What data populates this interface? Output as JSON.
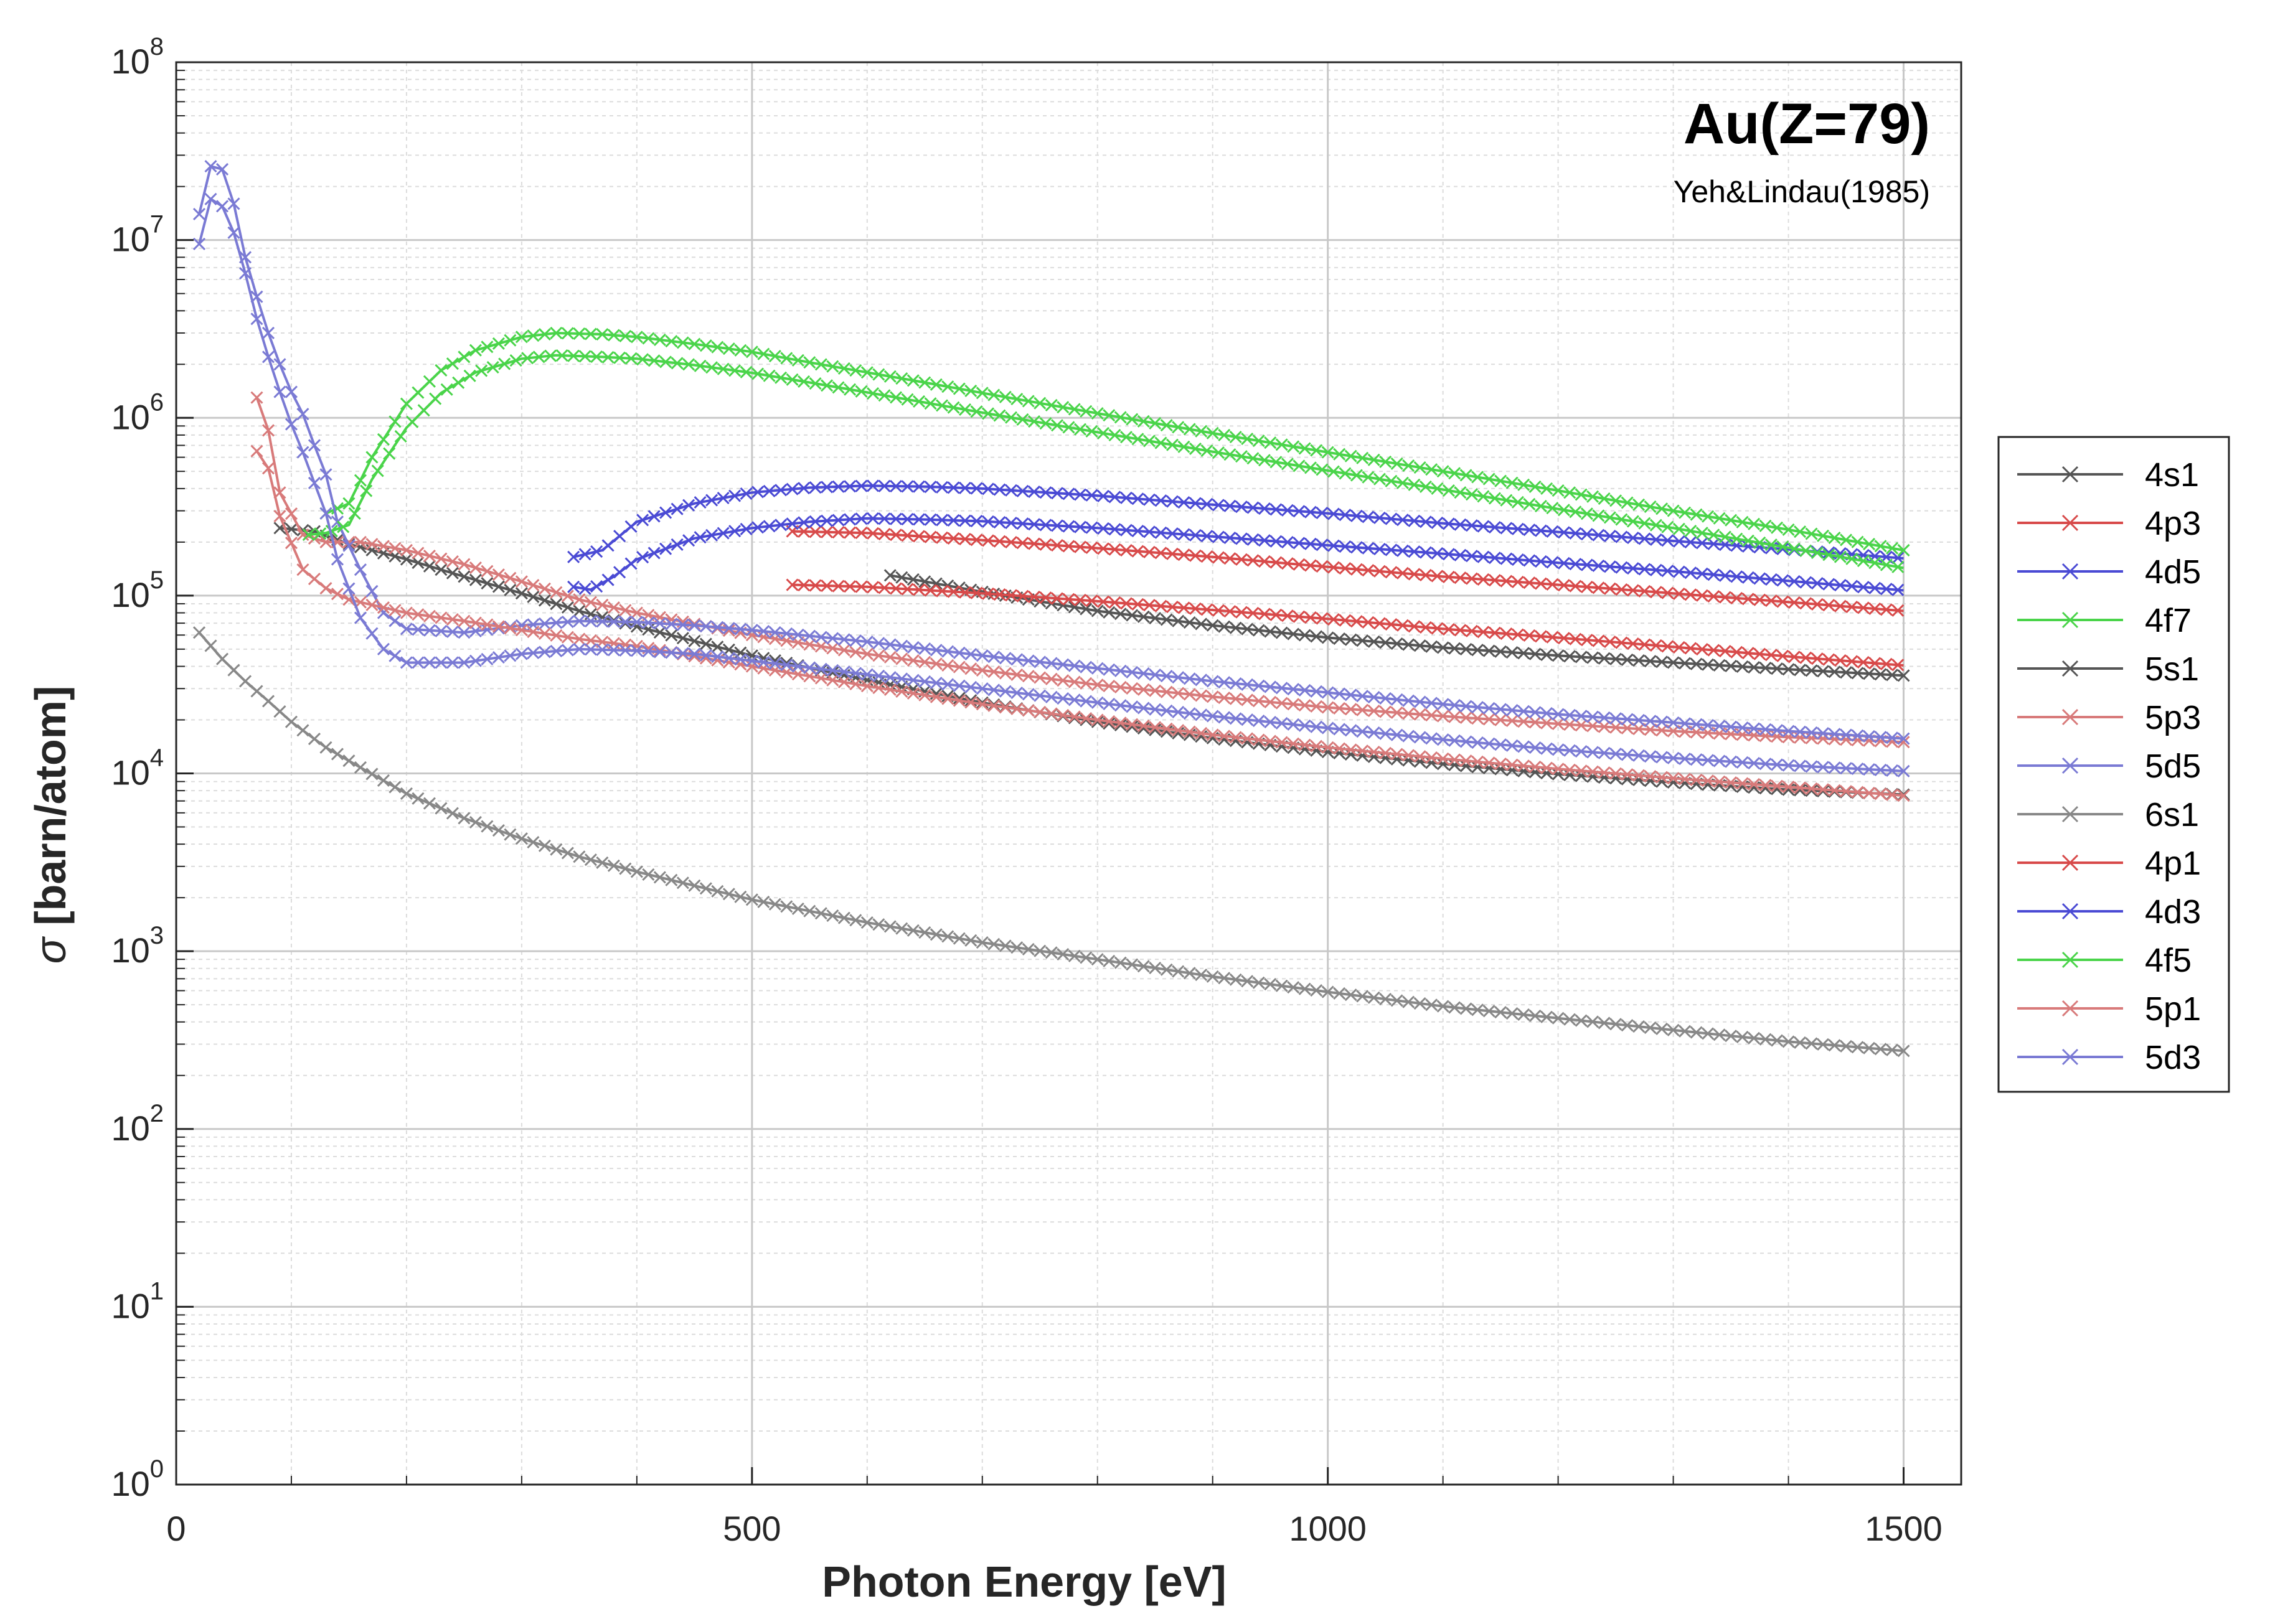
{
  "chart_data": {
    "type": "line",
    "title": "Au(Z=79)",
    "subtitle": "Yeh&Lindau(1985)",
    "xlabel": "Photon Energy [eV]",
    "ylabel_symbol": "σ",
    "ylabel_text": " [barn/atom]",
    "xlim": [
      0,
      1550
    ],
    "ylim": [
      1,
      100000000
    ],
    "yscale": "log",
    "grid": true,
    "minor_grid": true,
    "legend_position": "right",
    "marker": "x",
    "xticks": [
      {
        "value": 0,
        "label": "0"
      },
      {
        "value": 500,
        "label": "500"
      },
      {
        "value": 1000,
        "label": "1000"
      },
      {
        "value": 1500,
        "label": "1500"
      }
    ],
    "yticks": [
      {
        "value": 1,
        "base": "10",
        "exp": "0"
      },
      {
        "value": 10,
        "base": "10",
        "exp": "1"
      },
      {
        "value": 100,
        "base": "10",
        "exp": "2"
      },
      {
        "value": 1000,
        "base": "10",
        "exp": "3"
      },
      {
        "value": 10000,
        "base": "10",
        "exp": "4"
      },
      {
        "value": 100000,
        "base": "10",
        "exp": "5"
      },
      {
        "value": 1000000,
        "base": "10",
        "exp": "6"
      },
      {
        "value": 10000000,
        "base": "10",
        "exp": "7"
      },
      {
        "value": 100000000,
        "base": "10",
        "exp": "8"
      }
    ],
    "series": [
      {
        "name": "4s1",
        "color": "#555555",
        "points": [
          [
            620,
            130000
          ],
          [
            700,
            105000
          ],
          [
            800,
            82000
          ],
          [
            900,
            68000
          ],
          [
            1000,
            58000
          ],
          [
            1100,
            51000
          ],
          [
            1200,
            46000
          ],
          [
            1300,
            42000
          ],
          [
            1400,
            38500
          ],
          [
            1500,
            35500
          ]
        ]
      },
      {
        "name": "4p3",
        "color": "#d84a4a",
        "points": [
          [
            535,
            230000
          ],
          [
            600,
            225000
          ],
          [
            700,
            205000
          ],
          [
            800,
            185000
          ],
          [
            900,
            165000
          ],
          [
            1000,
            145000
          ],
          [
            1100,
            128000
          ],
          [
            1200,
            115000
          ],
          [
            1300,
            103000
          ],
          [
            1400,
            92000
          ],
          [
            1500,
            82000
          ]
        ]
      },
      {
        "name": "4d5",
        "color": "#4a4ad4",
        "points": [
          [
            345,
            165000
          ],
          [
            370,
            180000
          ],
          [
            400,
            260000
          ],
          [
            450,
            330000
          ],
          [
            500,
            380000
          ],
          [
            550,
            405000
          ],
          [
            600,
            415000
          ],
          [
            650,
            410000
          ],
          [
            700,
            400000
          ],
          [
            800,
            365000
          ],
          [
            900,
            325000
          ],
          [
            1000,
            290000
          ],
          [
            1100,
            255000
          ],
          [
            1200,
            228000
          ],
          [
            1300,
            203000
          ],
          [
            1400,
            182000
          ],
          [
            1500,
            162000
          ]
        ]
      },
      {
        "name": "4f7",
        "color": "#4ad44a",
        "points": [
          [
            130,
            290000
          ],
          [
            150,
            330000
          ],
          [
            170,
            600000
          ],
          [
            200,
            1200000
          ],
          [
            230,
            1850000
          ],
          [
            260,
            2400000
          ],
          [
            300,
            2850000
          ],
          [
            330,
            3000000
          ],
          [
            370,
            2950000
          ],
          [
            400,
            2850000
          ],
          [
            450,
            2600000
          ],
          [
            500,
            2350000
          ],
          [
            550,
            2050000
          ],
          [
            600,
            1800000
          ],
          [
            650,
            1580000
          ],
          [
            700,
            1380000
          ],
          [
            800,
            1060000
          ],
          [
            900,
            820000
          ],
          [
            1000,
            640000
          ],
          [
            1100,
            500000
          ],
          [
            1200,
            390000
          ],
          [
            1300,
            300000
          ],
          [
            1400,
            235000
          ],
          [
            1500,
            180000
          ]
        ]
      },
      {
        "name": "5s1",
        "color": "#555555",
        "points": [
          [
            90,
            240000
          ],
          [
            120,
            230000
          ],
          [
            150,
            195000
          ],
          [
            200,
            160000
          ],
          [
            250,
            128000
          ],
          [
            300,
            103000
          ],
          [
            350,
            82000
          ],
          [
            400,
            67000
          ],
          [
            500,
            46000
          ],
          [
            600,
            33500
          ],
          [
            700,
            25000
          ],
          [
            800,
            19500
          ],
          [
            900,
            15800
          ],
          [
            1000,
            13200
          ],
          [
            1100,
            11300
          ],
          [
            1200,
            9900
          ],
          [
            1300,
            8900
          ],
          [
            1400,
            8100
          ],
          [
            1500,
            7600
          ]
        ]
      },
      {
        "name": "5p3",
        "color": "#d87a7a",
        "points": [
          [
            70,
            1300000
          ],
          [
            80,
            850000
          ],
          [
            90,
            380000
          ],
          [
            110,
            220000
          ],
          [
            130,
            200000
          ],
          [
            160,
            200000
          ],
          [
            200,
            180000
          ],
          [
            250,
            150000
          ],
          [
            300,
            120000
          ],
          [
            350,
            95000
          ],
          [
            400,
            80000
          ],
          [
            500,
            60000
          ],
          [
            600,
            47000
          ],
          [
            700,
            38000
          ],
          [
            800,
            31500
          ],
          [
            900,
            27000
          ],
          [
            1000,
            23500
          ],
          [
            1100,
            21000
          ],
          [
            1200,
            19000
          ],
          [
            1300,
            17300
          ],
          [
            1400,
            16000
          ],
          [
            1500,
            15000
          ]
        ]
      },
      {
        "name": "5d5",
        "color": "#7a7ad4",
        "points": [
          [
            20,
            14000000
          ],
          [
            30,
            26000000
          ],
          [
            40,
            25000000
          ],
          [
            50,
            16000000
          ],
          [
            60,
            8000000
          ],
          [
            70,
            4800000
          ],
          [
            80,
            3000000
          ],
          [
            90,
            2000000
          ],
          [
            100,
            1400000
          ],
          [
            110,
            1050000
          ],
          [
            120,
            700000
          ],
          [
            130,
            480000
          ],
          [
            140,
            260000
          ],
          [
            160,
            140000
          ],
          [
            180,
            80000
          ],
          [
            200,
            65000
          ],
          [
            250,
            62000
          ],
          [
            300,
            68000
          ],
          [
            350,
            72000
          ],
          [
            400,
            71000
          ],
          [
            450,
            68000
          ],
          [
            500,
            64000
          ],
          [
            600,
            55000
          ],
          [
            700,
            46000
          ],
          [
            800,
            39000
          ],
          [
            900,
            33000
          ],
          [
            1000,
            28500
          ],
          [
            1100,
            24500
          ],
          [
            1200,
            21500
          ],
          [
            1300,
            19300
          ],
          [
            1400,
            17300
          ],
          [
            1500,
            15700
          ]
        ]
      },
      {
        "name": "6s1",
        "color": "#888888",
        "points": [
          [
            20,
            62000
          ],
          [
            40,
            44000
          ],
          [
            60,
            33000
          ],
          [
            80,
            25500
          ],
          [
            100,
            19500
          ],
          [
            130,
            14000
          ],
          [
            160,
            10800
          ],
          [
            200,
            7700
          ],
          [
            250,
            5600
          ],
          [
            300,
            4300
          ],
          [
            350,
            3400
          ],
          [
            400,
            2800
          ],
          [
            500,
            1950
          ],
          [
            600,
            1450
          ],
          [
            700,
            1120
          ],
          [
            800,
            900
          ],
          [
            900,
            720
          ],
          [
            1000,
            590
          ],
          [
            1100,
            490
          ],
          [
            1200,
            420
          ],
          [
            1300,
            360
          ],
          [
            1400,
            310
          ],
          [
            1500,
            275
          ]
        ]
      },
      {
        "name": "4p1",
        "color": "#d84a4a",
        "points": [
          [
            535,
            115000
          ],
          [
            600,
            112000
          ],
          [
            700,
            103000
          ],
          [
            800,
            93000
          ],
          [
            900,
            83000
          ],
          [
            1000,
            74000
          ],
          [
            1100,
            65000
          ],
          [
            1200,
            58000
          ],
          [
            1300,
            51500
          ],
          [
            1400,
            45500
          ],
          [
            1500,
            40500
          ]
        ]
      },
      {
        "name": "4d3",
        "color": "#4a4ad4",
        "points": [
          [
            345,
            112000
          ],
          [
            360,
            108000
          ],
          [
            380,
            128000
          ],
          [
            400,
            160000
          ],
          [
            450,
            210000
          ],
          [
            500,
            240000
          ],
          [
            550,
            260000
          ],
          [
            600,
            272000
          ],
          [
            650,
            268000
          ],
          [
            700,
            262000
          ],
          [
            800,
            240000
          ],
          [
            900,
            215000
          ],
          [
            1000,
            192000
          ],
          [
            1100,
            172000
          ],
          [
            1200,
            153000
          ],
          [
            1300,
            137000
          ],
          [
            1400,
            121000
          ],
          [
            1500,
            107000
          ]
        ]
      },
      {
        "name": "4f5",
        "color": "#4ad44a",
        "points": [
          [
            115,
            220000
          ],
          [
            130,
            225000
          ],
          [
            150,
            250000
          ],
          [
            170,
            450000
          ],
          [
            200,
            880000
          ],
          [
            230,
            1380000
          ],
          [
            260,
            1800000
          ],
          [
            300,
            2150000
          ],
          [
            330,
            2250000
          ],
          [
            370,
            2200000
          ],
          [
            400,
            2150000
          ],
          [
            450,
            1980000
          ],
          [
            500,
            1790000
          ],
          [
            550,
            1580000
          ],
          [
            600,
            1390000
          ],
          [
            650,
            1220000
          ],
          [
            700,
            1070000
          ],
          [
            800,
            830000
          ],
          [
            900,
            645000
          ],
          [
            1000,
            505000
          ],
          [
            1100,
            395000
          ],
          [
            1200,
            307000
          ],
          [
            1300,
            240000
          ],
          [
            1400,
            186000
          ],
          [
            1500,
            143000
          ]
        ]
      },
      {
        "name": "5p1",
        "color": "#d87a7a",
        "points": [
          [
            70,
            650000
          ],
          [
            80,
            520000
          ],
          [
            90,
            280000
          ],
          [
            110,
            140000
          ],
          [
            130,
            110000
          ],
          [
            150,
            95000
          ],
          [
            200,
            80000
          ],
          [
            250,
            72000
          ],
          [
            300,
            64000
          ],
          [
            350,
            57000
          ],
          [
            400,
            52000
          ],
          [
            500,
            40000
          ],
          [
            600,
            31000
          ],
          [
            700,
            24500
          ],
          [
            800,
            20000
          ],
          [
            900,
            16500
          ],
          [
            1000,
            14000
          ],
          [
            1100,
            12100
          ],
          [
            1200,
            10600
          ],
          [
            1300,
            9400
          ],
          [
            1400,
            8400
          ],
          [
            1500,
            7500
          ]
        ]
      },
      {
        "name": "5d3",
        "color": "#7a7ad4",
        "points": [
          [
            20,
            9500000
          ],
          [
            30,
            17000000
          ],
          [
            40,
            15500000
          ],
          [
            50,
            11000000
          ],
          [
            60,
            6500000
          ],
          [
            70,
            3600000
          ],
          [
            80,
            2200000
          ],
          [
            90,
            1400000
          ],
          [
            100,
            920000
          ],
          [
            110,
            640000
          ],
          [
            120,
            430000
          ],
          [
            130,
            290000
          ],
          [
            140,
            160000
          ],
          [
            160,
            75000
          ],
          [
            180,
            50000
          ],
          [
            200,
            42000
          ],
          [
            250,
            42000
          ],
          [
            300,
            47000
          ],
          [
            350,
            50000
          ],
          [
            400,
            49000
          ],
          [
            450,
            47000
          ],
          [
            500,
            43000
          ],
          [
            600,
            36000
          ],
          [
            700,
            30000
          ],
          [
            800,
            25000
          ],
          [
            900,
            21000
          ],
          [
            1000,
            18000
          ],
          [
            1100,
            15500
          ],
          [
            1200,
            13600
          ],
          [
            1300,
            12200
          ],
          [
            1400,
            11100
          ],
          [
            1500,
            10300
          ]
        ]
      }
    ]
  }
}
